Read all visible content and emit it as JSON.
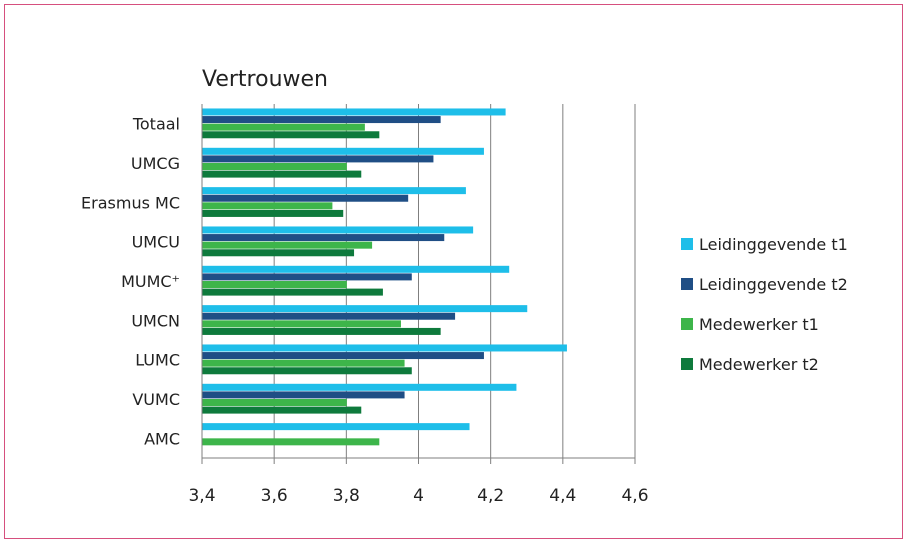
{
  "chart_data": {
    "type": "bar",
    "orientation": "horizontal",
    "title": "Vertrouwen",
    "xlabel": "",
    "ylabel": "",
    "xlim": [
      3.4,
      4.6
    ],
    "ticks": [
      "3,4",
      "3,6",
      "3,8",
      "4",
      "4,2",
      "4,4",
      "4,6"
    ],
    "tick_values": [
      3.4,
      3.6,
      3.8,
      4.0,
      4.2,
      4.4,
      4.6
    ],
    "grid": true,
    "legend_position": "right",
    "categories": [
      "Totaal",
      "UMCG",
      "Erasmus MC",
      "UMCU",
      "MUMC⁺",
      "UMCN",
      "LUMC",
      "VUMC",
      "AMC"
    ],
    "series": [
      {
        "name": "Leidinggevende t1",
        "color": "#1ebee9",
        "values": [
          4.24,
          4.18,
          4.13,
          4.15,
          4.25,
          4.3,
          4.41,
          4.27,
          4.14
        ]
      },
      {
        "name": "Leidinggevende t2",
        "color": "#1f4e85",
        "values": [
          4.06,
          4.04,
          3.97,
          4.07,
          3.98,
          4.1,
          4.18,
          3.96,
          null
        ]
      },
      {
        "name": "Medewerker t1",
        "color": "#3db54a",
        "values": [
          3.85,
          3.8,
          3.76,
          3.87,
          3.8,
          3.95,
          3.96,
          3.8,
          3.89
        ]
      },
      {
        "name": "Medewerker t2",
        "color": "#0e7a3c",
        "values": [
          3.89,
          3.84,
          3.79,
          3.82,
          3.9,
          4.06,
          3.98,
          3.84,
          null
        ]
      }
    ]
  }
}
